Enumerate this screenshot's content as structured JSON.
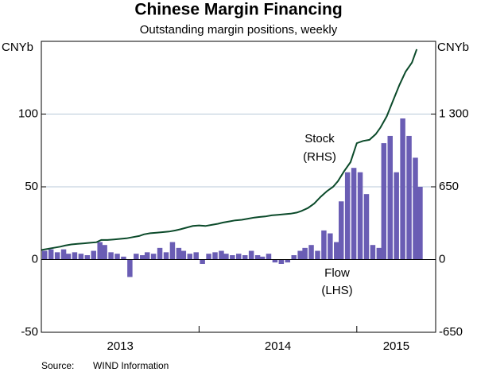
{
  "chart_data": {
    "type": "bar-line",
    "title": "Chinese Margin Financing",
    "subtitle": "Outstanding margin positions, weekly",
    "ylabel": "CNYb",
    "y2label": "CNYb",
    "source_label": "Source:",
    "source": "WIND Information",
    "x": [
      2013.0,
      2013.04,
      2013.08,
      2013.12,
      2013.15,
      2013.19,
      2013.23,
      2013.27,
      2013.31,
      2013.35,
      2013.38,
      2013.42,
      2013.46,
      2013.5,
      2013.54,
      2013.58,
      2013.62,
      2013.65,
      2013.69,
      2013.73,
      2013.77,
      2013.81,
      2013.85,
      2013.88,
      2013.92,
      2013.96,
      2014.0,
      2014.04,
      2014.08,
      2014.12,
      2014.15,
      2014.19,
      2014.23,
      2014.27,
      2014.31,
      2014.35,
      2014.38,
      2014.42,
      2014.46,
      2014.5,
      2014.54,
      2014.58,
      2014.62,
      2014.65,
      2014.69,
      2014.73,
      2014.77,
      2014.81,
      2014.85,
      2014.88,
      2014.92,
      2014.96,
      2015.0,
      2015.04,
      2015.08,
      2015.12,
      2015.15,
      2015.19,
      2015.23,
      2015.27,
      2015.31,
      2015.35,
      2015.38
    ],
    "xlim": [
      2013,
      2015.5
    ],
    "xticks": [
      {
        "value": 2013.5,
        "label": "2013"
      },
      {
        "value": 2014.5,
        "label": "2014"
      },
      {
        "value": 2015.25,
        "label": "2015"
      }
    ],
    "ylim": [
      -50,
      150
    ],
    "yticks": [
      -50,
      0,
      50,
      100
    ],
    "y2lim": [
      -650,
      1950
    ],
    "y2ticks": [
      -650,
      0,
      650,
      {
        "value": 1300,
        "label": "1 300"
      }
    ],
    "grid": true,
    "series": [
      {
        "name": "Flow",
        "note": "(LHS)",
        "type": "bar",
        "color": "#6a5db4",
        "values": [
          6,
          7,
          5,
          7,
          4,
          5,
          4,
          3,
          6,
          12,
          10,
          5,
          4,
          2,
          -12,
          4,
          3,
          5,
          4,
          8,
          5,
          12,
          8,
          6,
          4,
          5,
          -3,
          4,
          5,
          6,
          4,
          3,
          4,
          3,
          6,
          3,
          2,
          4,
          -2,
          -3,
          -2,
          3,
          6,
          8,
          10,
          6,
          20,
          18,
          12,
          40,
          60,
          63,
          60,
          45,
          10,
          8,
          80,
          85,
          60,
          97,
          85,
          70,
          50
        ]
      },
      {
        "name": "Stock",
        "note": "(RHS)",
        "type": "line",
        "axis": "y2",
        "color": "#0b4a2a",
        "values": [
          85,
          95,
          105,
          115,
          125,
          135,
          140,
          145,
          150,
          155,
          175,
          175,
          180,
          185,
          190,
          200,
          210,
          225,
          235,
          240,
          245,
          250,
          260,
          270,
          285,
          300,
          305,
          300,
          310,
          320,
          330,
          340,
          350,
          355,
          365,
          375,
          380,
          385,
          395,
          400,
          405,
          410,
          420,
          435,
          460,
          500,
          560,
          610,
          650,
          700,
          790,
          870,
          1040,
          1060,
          1070,
          1120,
          1180,
          1280,
          1420,
          1560,
          1680,
          1760,
          1880
        ]
      }
    ]
  }
}
